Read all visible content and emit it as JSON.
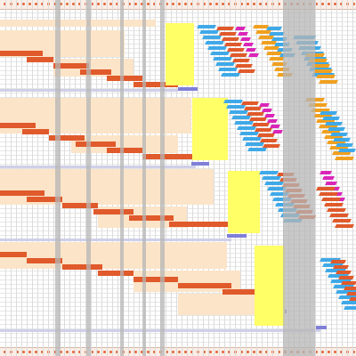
{
  "app": {
    "view": "gantt-schedule"
  },
  "colors": {
    "task_bar": "#e05a2b",
    "planned_band": "#fbe4c8",
    "milestone": "#7f7fd8",
    "highlight": "#ffff66",
    "blue": "#3fa9e8",
    "magenta": "#d926b8",
    "orange": "#f0a020",
    "gray_column": "#b5b5b5",
    "header_bg": "#fbeee6",
    "tick": "#e0673a"
  },
  "legend_items": [],
  "icons": [
    "timeline-tick-icon"
  ]
}
